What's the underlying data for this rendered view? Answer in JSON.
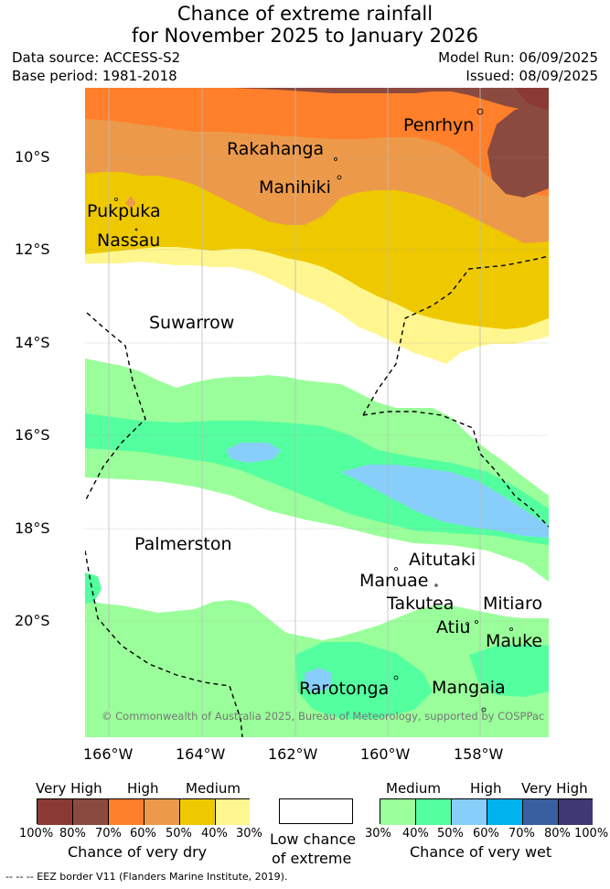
{
  "header": {
    "title_line1": "Chance of extreme rainfall",
    "title_line2": "for November 2025 to January 2026",
    "data_source": "Data source: ACCESS-S2",
    "base_period": "Base period: 1981-2018",
    "model_run": "Model Run: 06/09/2025",
    "issued": "Issued: 08/09/2025"
  },
  "map": {
    "lat_ticks": [
      "10°S",
      "12°S",
      "14°S",
      "16°S",
      "18°S",
      "20°S"
    ],
    "lon_ticks": [
      "166°W",
      "164°W",
      "162°W",
      "160°W",
      "158°W"
    ],
    "places": [
      "Penrhyn",
      "Rakahanga",
      "Manihiki",
      "Pukpuka",
      "Nassau",
      "Suwarrow",
      "Palmerston",
      "Aitutaki",
      "Manuae",
      "Takutea",
      "Mitiaro",
      "Atiu",
      "Mauke",
      "Rarotonga",
      "Mangaia"
    ],
    "copyright": "© Commonwealth of Australia 2025, Bureau of Meteorology, supported by COSPPac"
  },
  "legend": {
    "dry": {
      "labels": [
        "Very High",
        "High",
        "Medium"
      ],
      "colors": [
        "#8b3a33",
        "#8b4a3f",
        "#ff7f2a",
        "#ec9a4a",
        "#eec900",
        "#fff68f"
      ],
      "percents": [
        "100%",
        "80%",
        "70%",
        "60%",
        "50%",
        "40%",
        "30%"
      ],
      "caption": "Chance of very dry"
    },
    "neutral": {
      "caption_line1": "Low chance",
      "caption_line2": "of extreme"
    },
    "wet": {
      "labels": [
        "Medium",
        "High",
        "Very High"
      ],
      "colors": [
        "#9aff9a",
        "#54ff9f",
        "#87cefa",
        "#00b2ee",
        "#3a5fa0",
        "#3f3875"
      ],
      "percents": [
        "30%",
        "40%",
        "50%",
        "60%",
        "70%",
        "80%",
        "100%"
      ],
      "caption": "Chance of very wet"
    }
  },
  "footnote": "--  --  -- EEZ border V11 (Flanders Marine Institute, 2019)."
}
